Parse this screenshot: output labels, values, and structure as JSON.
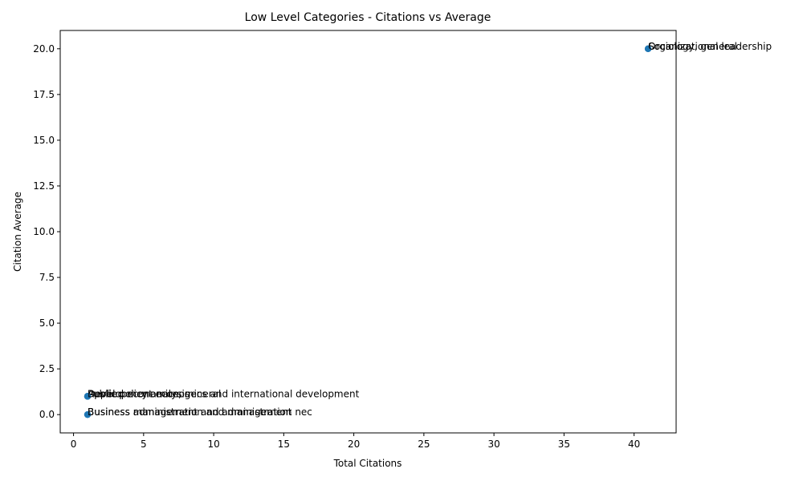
{
  "chart_data": {
    "type": "scatter",
    "title": "Low Level Categories - Citations vs Average",
    "xlabel": "Total Citations",
    "ylabel": "Citation Average",
    "xlim": [
      -0.95,
      43.0
    ],
    "ylim": [
      -1.0,
      21.0
    ],
    "xticks": [
      0,
      5,
      10,
      15,
      20,
      25,
      30,
      35,
      40
    ],
    "yticks": [
      0.0,
      2.5,
      5.0,
      7.5,
      10.0,
      12.5,
      15.0,
      17.5,
      20.0
    ],
    "xtick_labels": [
      "0",
      "5",
      "10",
      "15",
      "20",
      "25",
      "30",
      "35",
      "40"
    ],
    "ytick_labels": [
      "0.0",
      "2.5",
      "5.0",
      "7.5",
      "10.0",
      "12.5",
      "15.0",
      "17.5",
      "20.0"
    ],
    "grid": false,
    "marker_color": "#1f77b4",
    "points": [
      {
        "label": "Sociology, general",
        "x": 41,
        "y": 20
      },
      {
        "label": "Organizational leadership",
        "x": 41,
        "y": 20
      },
      {
        "label": "Applied economics, general",
        "x": 1,
        "y": 1
      },
      {
        "label": "Public policy analysis",
        "x": 1,
        "y": 1
      },
      {
        "label": "Development economics and international development",
        "x": 1,
        "y": 1
      },
      {
        "label": "Business administration and management",
        "x": 1,
        "y": 0
      },
      {
        "label": "Business management and administration nec",
        "x": 1,
        "y": 0
      }
    ]
  }
}
